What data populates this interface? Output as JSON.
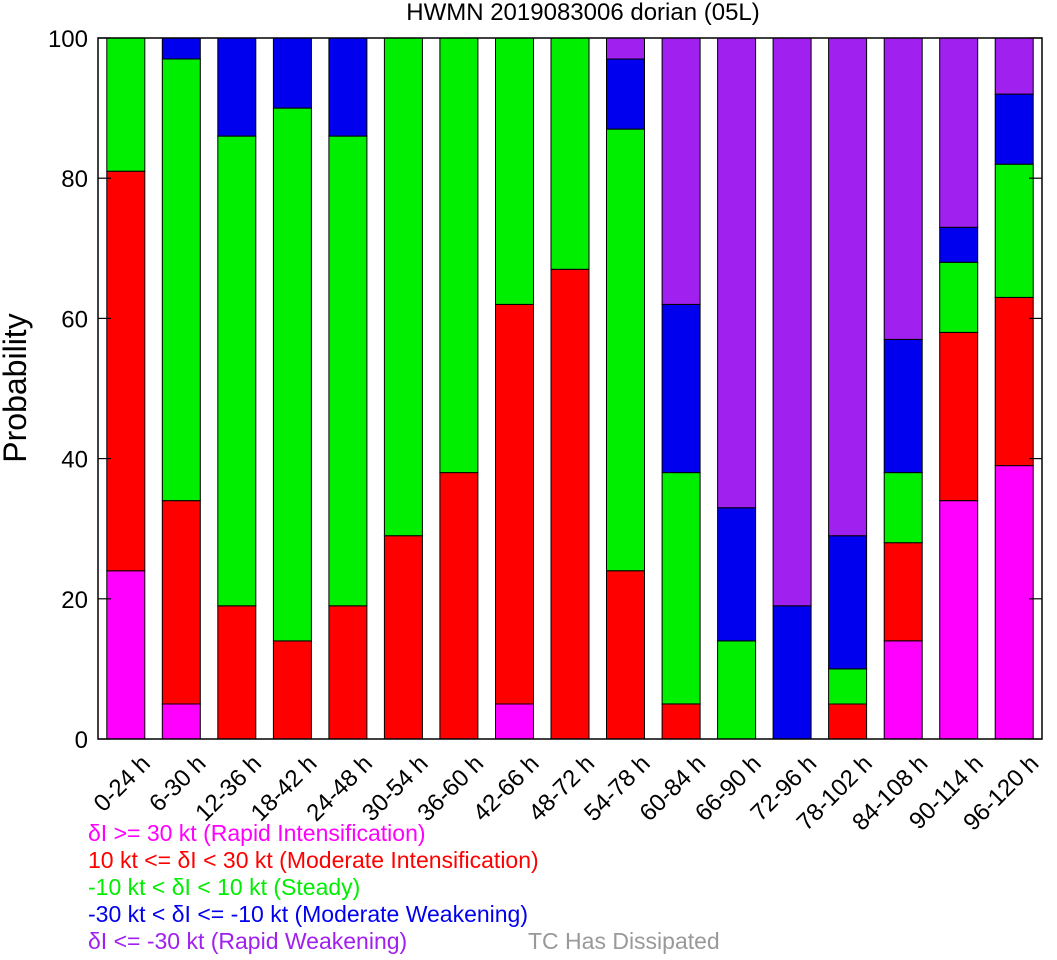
{
  "chart_data": {
    "type": "bar",
    "stacked": true,
    "title": "HWMN 2019083006 dorian (05L)",
    "ylabel": "Probability",
    "xlabel": "",
    "ylim": [
      0,
      100
    ],
    "yticks": [
      0,
      20,
      40,
      60,
      80,
      100
    ],
    "categories": [
      "0-24 h",
      "6-30 h",
      "12-36 h",
      "18-42 h",
      "24-48 h",
      "30-54 h",
      "36-60 h",
      "42-66 h",
      "48-72 h",
      "54-78 h",
      "60-84 h",
      "66-90 h",
      "72-96 h",
      "78-102 h",
      "84-108 h",
      "90-114 h",
      "96-120 h"
    ],
    "series": [
      {
        "name": "δI >= 30 kt (Rapid Intensification)",
        "color": "#ff00ff",
        "values": [
          24,
          5,
          0,
          0,
          0,
          0,
          0,
          5,
          0,
          0,
          0,
          0,
          0,
          0,
          14,
          34,
          39
        ]
      },
      {
        "name": "10 kt <= δI < 30 kt (Moderate Intensification)",
        "color": "#ff0000",
        "values": [
          57,
          29,
          19,
          14,
          19,
          29,
          38,
          57,
          67,
          24,
          5,
          0,
          0,
          5,
          14,
          24,
          24
        ]
      },
      {
        "name": "-10 kt < δI < 10 kt (Steady)",
        "color": "#00ee00",
        "values": [
          19,
          63,
          67,
          76,
          67,
          71,
          62,
          38,
          33,
          63,
          33,
          14,
          0,
          5,
          10,
          10,
          19
        ]
      },
      {
        "name": "-30 kt < δI <= -10 kt (Moderate Weakening)",
        "color": "#0000ee",
        "values": [
          0,
          3,
          14,
          10,
          14,
          0,
          0,
          0,
          0,
          10,
          24,
          19,
          19,
          19,
          19,
          5,
          10
        ]
      },
      {
        "name": "δI <= -30 kt (Rapid Weakening)",
        "color": "#a020f0",
        "values": [
          0,
          0,
          0,
          0,
          0,
          0,
          0,
          0,
          0,
          3,
          38,
          67,
          81,
          71,
          43,
          27,
          8
        ]
      }
    ],
    "extra_legend": {
      "text": "TC Has Dissipated",
      "color": "#999999"
    },
    "grid": false,
    "legend_position": "bottom-left"
  }
}
